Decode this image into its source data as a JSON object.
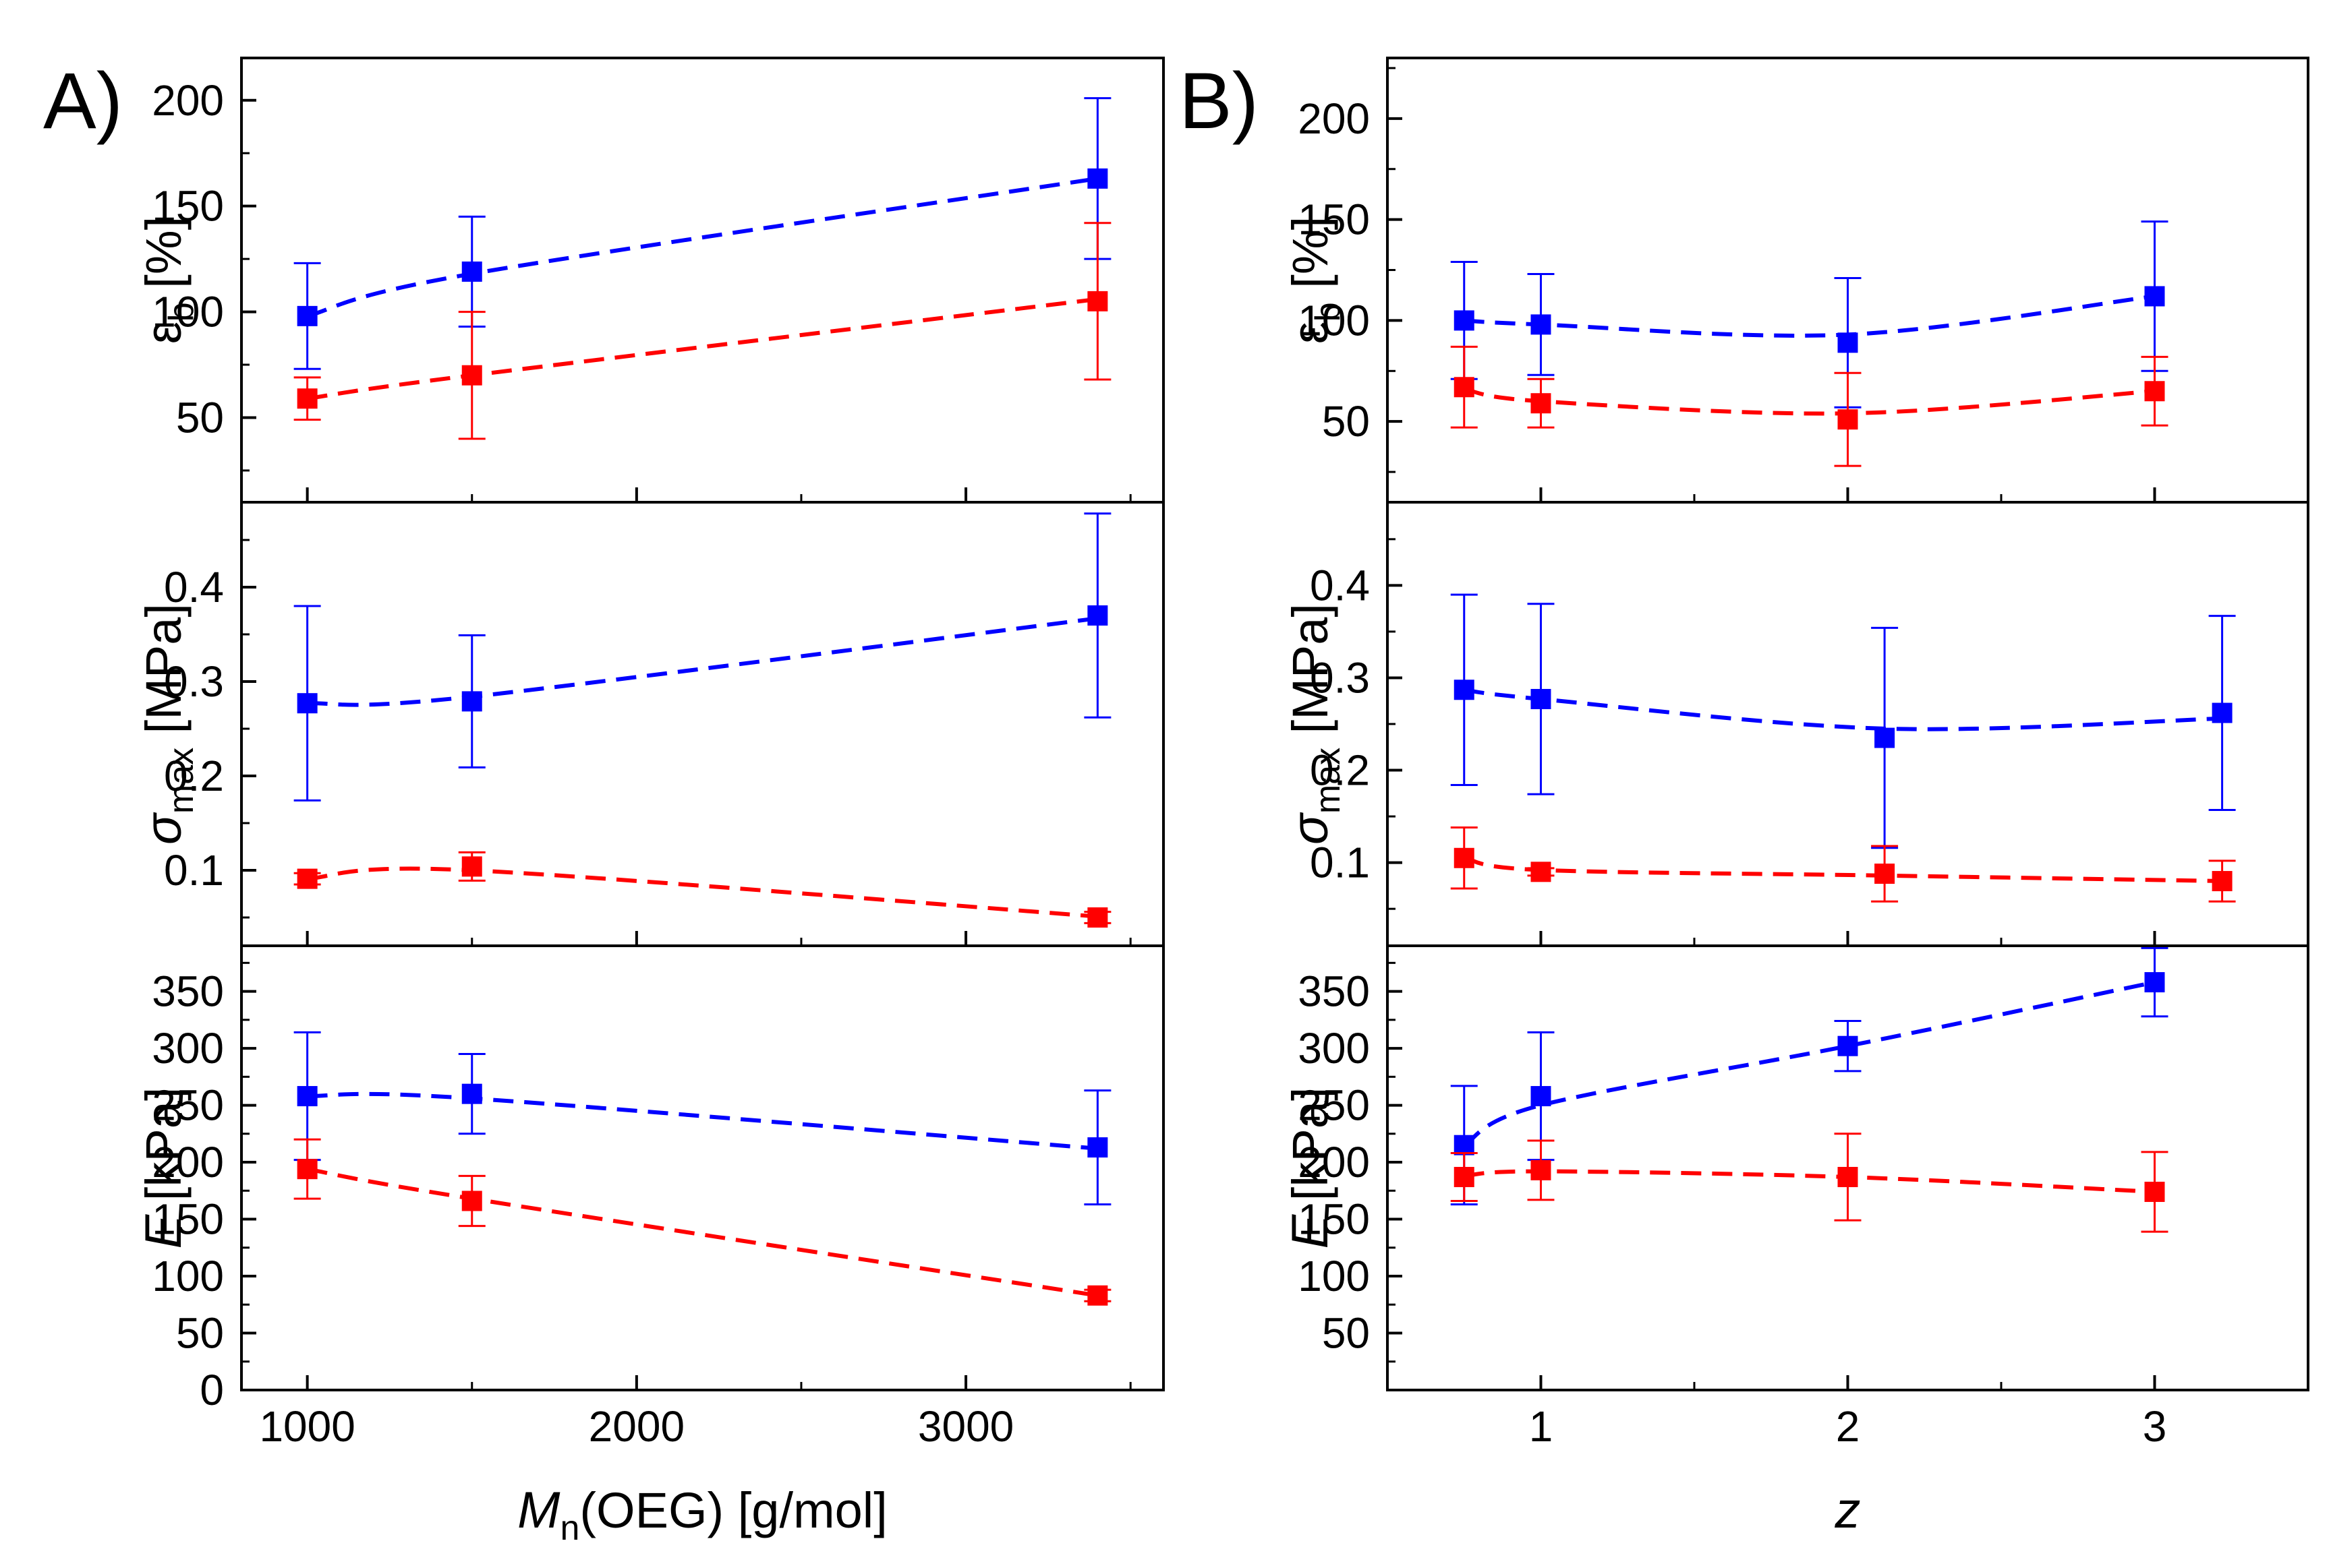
{
  "chart_data": [
    {
      "panel": "A)",
      "type": "scatter",
      "xlabel": {
        "main": "M",
        "sub": "n",
        "rest": "(OEG) [g/mol]"
      },
      "x_ticks": [
        "1000",
        "2000",
        "3000"
      ],
      "xlim": [
        800,
        3600
      ],
      "colors": {
        "blue": "#0000ff",
        "red": "#ff0000"
      },
      "subplots": [
        {
          "ylabel": {
            "main": "ε",
            "sub": "b",
            "rest": " [%]"
          },
          "ylim": [
            10,
            220
          ],
          "y_ticks": [
            "50",
            "100",
            "150",
            "200"
          ],
          "series": [
            {
              "color": "blue",
              "x": [
                1000,
                1500,
                3400
              ],
              "y": [
                98,
                119,
                163
              ],
              "yerr": [
                25,
                26,
                38
              ],
              "fit": [
                98,
                118,
                163
              ]
            },
            {
              "color": "red",
              "x": [
                1000,
                1500,
                3400
              ],
              "y": [
                59,
                70,
                105
              ],
              "yerr": [
                10,
                30,
                37
              ],
              "fit": [
                59,
                70,
                106
              ]
            }
          ]
        },
        {
          "ylabel": {
            "main": "σ",
            "sub": "max",
            "rest": " [MPa]"
          },
          "ylim": [
            0.02,
            0.49
          ],
          "y_ticks": [
            "0.1",
            "0.2",
            "0.3",
            "0.4"
          ],
          "series": [
            {
              "color": "blue",
              "x": [
                1000,
                1500,
                3400
              ],
              "y": [
                0.277,
                0.279,
                0.37
              ],
              "yerr": [
                0.103,
                0.07,
                0.108
              ],
              "fit": [
                0.277,
                0.284,
                0.367
              ]
            },
            {
              "color": "red",
              "x": [
                1000,
                1500,
                3400
              ],
              "y": [
                0.091,
                0.104,
                0.05
              ],
              "yerr": [
                0.006,
                0.015,
                0.006
              ],
              "fit": [
                0.091,
                0.1,
                0.051
              ]
            }
          ]
        },
        {
          "ylabel": {
            "main": "E",
            "sub": "",
            "rest": " [kPa]"
          },
          "ylim": [
            0,
            390
          ],
          "y_ticks": [
            "0",
            "50",
            "100",
            "150",
            "200",
            "250",
            "300",
            "350"
          ],
          "series": [
            {
              "color": "blue",
              "x": [
                1000,
                1500,
                3400
              ],
              "y": [
                258,
                260,
                213
              ],
              "yerr": [
                56,
                35,
                50
              ],
              "fit": [
                258,
                256,
                212
              ]
            },
            {
              "color": "red",
              "x": [
                1000,
                1500,
                3400
              ],
              "y": [
                194,
                166,
                83
              ],
              "yerr": [
                26,
                22,
                5
              ],
              "fit": [
                194,
                168,
                83
              ]
            }
          ]
        }
      ]
    },
    {
      "panel": "B)",
      "type": "scatter",
      "xlabel": {
        "main": "z",
        "sub": "",
        "rest": ""
      },
      "x_ticks": [
        "1",
        "2",
        "3"
      ],
      "xlim": [
        0.5,
        3.5
      ],
      "colors": {
        "blue": "#0000ff",
        "red": "#ff0000"
      },
      "subplots": [
        {
          "ylabel": {
            "main": "ε",
            "sub": "b",
            "rest": " [%]"
          },
          "ylim": [
            10,
            230
          ],
          "y_ticks": [
            "50",
            "100",
            "150",
            "200"
          ],
          "series": [
            {
              "color": "blue",
              "x": [
                0.75,
                1,
                2,
                3
              ],
              "y": [
                100,
                98,
                89,
                112
              ],
              "yerr": [
                29,
                25,
                32,
                37
              ],
              "fit": [
                100,
                98,
                93,
                112
              ]
            },
            {
              "color": "red",
              "x": [
                0.75,
                1,
                2,
                3
              ],
              "y": [
                67,
                59,
                51,
                65
              ],
              "yerr": [
                20,
                12,
                23,
                17
              ],
              "fit": [
                66,
                60,
                54,
                65
              ]
            }
          ]
        },
        {
          "ylabel": {
            "main": "σ",
            "sub": "max",
            "rest": " [MPa]"
          },
          "ylim": [
            0.01,
            0.49
          ],
          "y_ticks": [
            "0.1",
            "0.2",
            "0.3",
            "0.4"
          ],
          "series": [
            {
              "color": "blue",
              "x": [
                0.75,
                1,
                2.12,
                3.22
              ],
              "y": [
                0.287,
                0.277,
                0.235,
                0.262
              ],
              "yerr": [
                0.103,
                0.103,
                0.119,
                0.105
              ],
              "fit": [
                0.287,
                0.277,
                0.245,
                0.256
              ]
            },
            {
              "color": "red",
              "x": [
                0.75,
                1,
                2.12,
                3.22
              ],
              "y": [
                0.105,
                0.09,
                0.088,
                0.08
              ],
              "yerr": [
                0.033,
                0.004,
                0.03,
                0.022
              ],
              "fit": [
                0.105,
                0.092,
                0.086,
                0.08
              ]
            }
          ]
        },
        {
          "ylabel": {
            "main": "E",
            "sub": "",
            "rest": " [kPa]"
          },
          "ylim": [
            0,
            390
          ],
          "y_ticks": [
            "50",
            "100",
            "150",
            "200",
            "250",
            "300",
            "350"
          ],
          "series": [
            {
              "color": "blue",
              "x": [
                0.75,
                1,
                2,
                3
              ],
              "y": [
                215,
                258,
                302,
                358
              ],
              "yerr": [
                52,
                56,
                22,
                30
              ],
              "fit": [
                215,
                250,
                302,
                358
              ]
            },
            {
              "color": "red",
              "x": [
                0.75,
                1,
                2,
                3
              ],
              "y": [
                187,
                193,
                187,
                174
              ],
              "yerr": [
                21,
                26,
                38,
                35
              ],
              "fit": [
                188,
                192,
                187,
                174
              ]
            }
          ]
        }
      ]
    }
  ]
}
